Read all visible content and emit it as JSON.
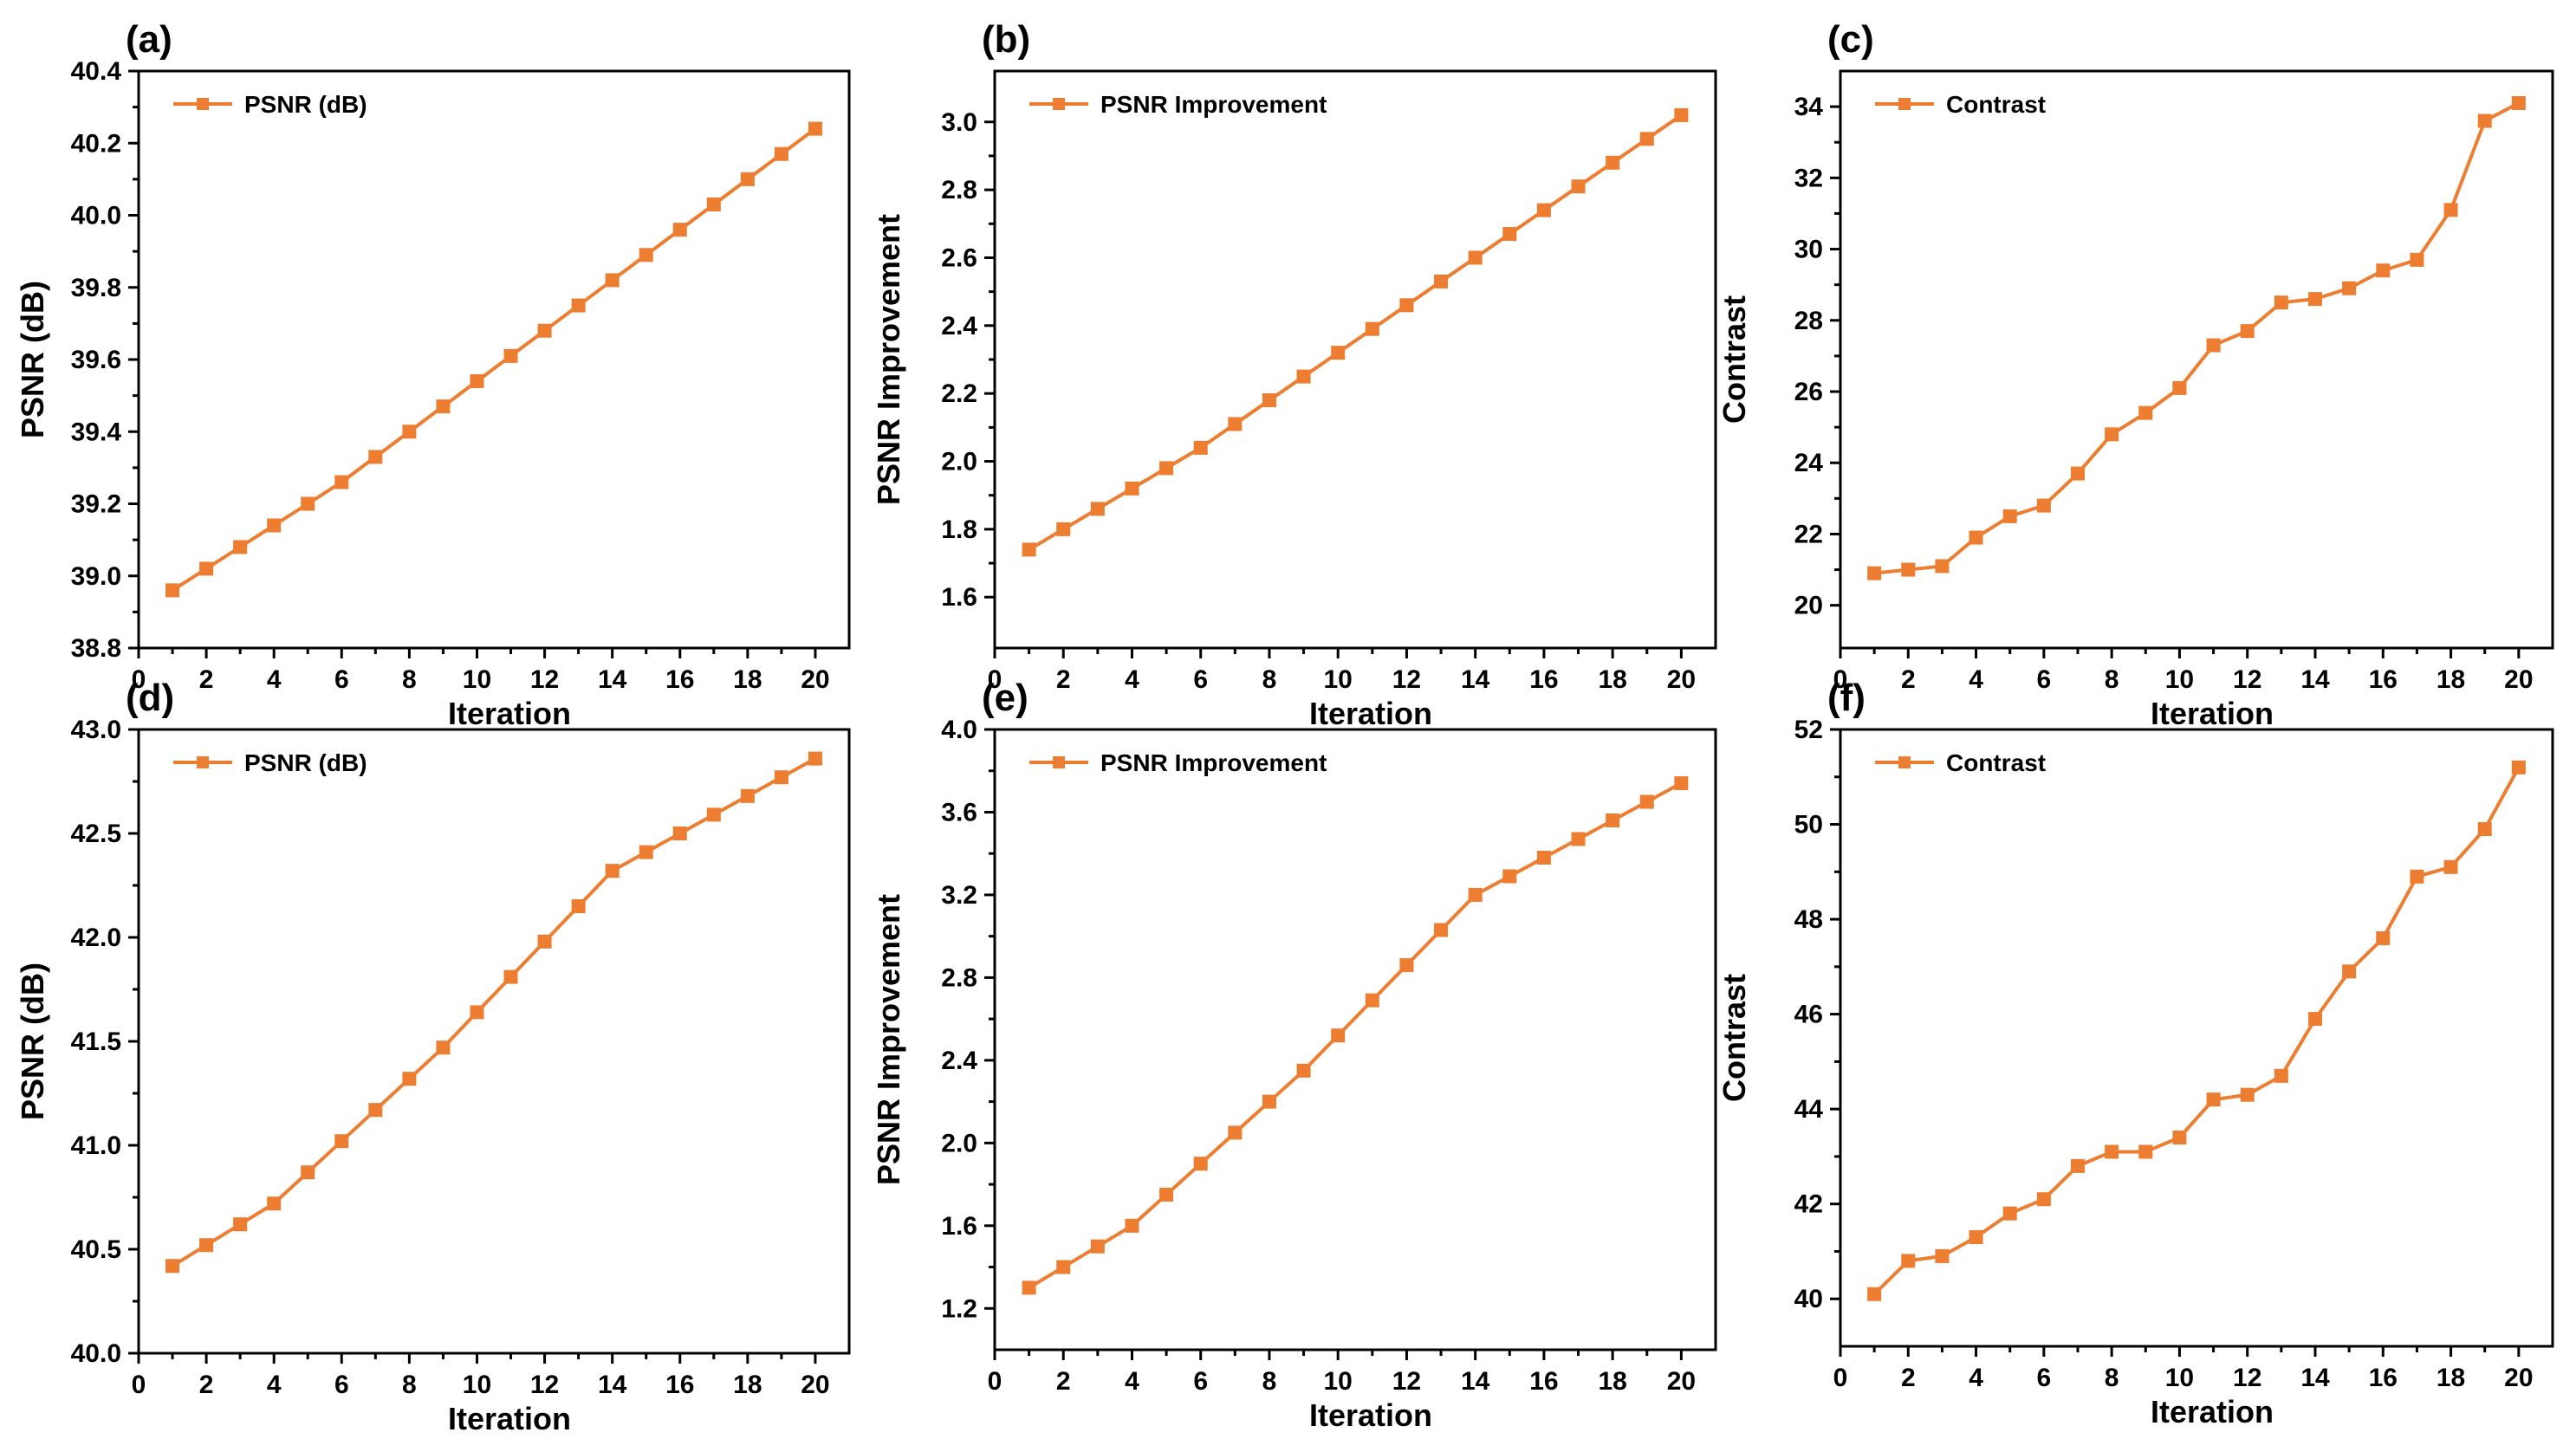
{
  "series_color": "#ED7D31",
  "chart_data": [
    {
      "type": "line",
      "panel": "(a)",
      "xlabel": "Iteration",
      "ylabel": "PSNR (dB)",
      "legend": "PSNR (dB)",
      "xlim": [
        0,
        21
      ],
      "ylim": [
        38.8,
        40.4
      ],
      "xticks": [
        0,
        2,
        4,
        6,
        8,
        10,
        12,
        14,
        16,
        18,
        20
      ],
      "yticks": [
        38.8,
        39.0,
        39.2,
        39.4,
        39.6,
        39.8,
        40.0,
        40.2,
        40.4
      ],
      "ytick_labels": [
        "38.8",
        "39.0",
        "39.2",
        "39.4",
        "39.6",
        "39.8",
        "40.0",
        "40.2",
        "40.4"
      ],
      "x": [
        1,
        2,
        3,
        4,
        5,
        6,
        7,
        8,
        9,
        10,
        11,
        12,
        13,
        14,
        15,
        16,
        17,
        18,
        19,
        20
      ],
      "values": [
        38.96,
        39.02,
        39.08,
        39.14,
        39.2,
        39.26,
        39.33,
        39.4,
        39.47,
        39.54,
        39.61,
        39.68,
        39.75,
        39.82,
        39.89,
        39.96,
        40.03,
        40.1,
        40.17,
        40.24
      ]
    },
    {
      "type": "line",
      "panel": "(b)",
      "xlabel": "Iteration",
      "ylabel": "PSNR Improvement",
      "legend": "PSNR Improvement",
      "xlim": [
        0,
        21
      ],
      "ylim": [
        1.45,
        3.15
      ],
      "xticks": [
        0,
        2,
        4,
        6,
        8,
        10,
        12,
        14,
        16,
        18,
        20
      ],
      "yticks": [
        1.6,
        1.8,
        2.0,
        2.2,
        2.4,
        2.6,
        2.8,
        3.0
      ],
      "ytick_labels": [
        "1.6",
        "1.8",
        "2.0",
        "2.2",
        "2.4",
        "2.6",
        "2.8",
        "3.0"
      ],
      "x": [
        1,
        2,
        3,
        4,
        5,
        6,
        7,
        8,
        9,
        10,
        11,
        12,
        13,
        14,
        15,
        16,
        17,
        18,
        19,
        20
      ],
      "values": [
        1.74,
        1.8,
        1.86,
        1.92,
        1.98,
        2.04,
        2.11,
        2.18,
        2.25,
        2.32,
        2.39,
        2.46,
        2.53,
        2.6,
        2.67,
        2.74,
        2.81,
        2.88,
        2.95,
        3.02
      ]
    },
    {
      "type": "line",
      "panel": "(c)",
      "xlabel": "Iteration",
      "ylabel": "Contrast",
      "legend": "Contrast",
      "xlim": [
        0,
        21
      ],
      "ylim": [
        18.8,
        35.0
      ],
      "xticks": [
        0,
        2,
        4,
        6,
        8,
        10,
        12,
        14,
        16,
        18,
        20
      ],
      "yticks": [
        20,
        22,
        24,
        26,
        28,
        30,
        32,
        34
      ],
      "ytick_labels": [
        "20",
        "22",
        "24",
        "26",
        "28",
        "30",
        "32",
        "34"
      ],
      "x": [
        1,
        2,
        3,
        4,
        5,
        6,
        7,
        8,
        9,
        10,
        11,
        12,
        13,
        14,
        15,
        16,
        17,
        18,
        19,
        20
      ],
      "values": [
        20.9,
        21.0,
        21.1,
        21.9,
        22.5,
        22.8,
        23.7,
        24.8,
        25.4,
        26.1,
        27.3,
        27.7,
        28.5,
        28.6,
        28.9,
        29.4,
        29.7,
        31.1,
        33.6,
        34.1
      ]
    },
    {
      "type": "line",
      "panel": "(d)",
      "xlabel": "Iteration",
      "ylabel": "PSNR (dB)",
      "legend": "PSNR (dB)",
      "xlim": [
        0,
        21
      ],
      "ylim": [
        40.0,
        43.0
      ],
      "xticks": [
        0,
        2,
        4,
        6,
        8,
        10,
        12,
        14,
        16,
        18,
        20
      ],
      "yticks": [
        40.0,
        40.5,
        41.0,
        41.5,
        42.0,
        42.5,
        43.0
      ],
      "ytick_labels": [
        "40.0",
        "40.5",
        "41.0",
        "41.5",
        "42.0",
        "42.5",
        "43.0"
      ],
      "x": [
        1,
        2,
        3,
        4,
        5,
        6,
        7,
        8,
        9,
        10,
        11,
        12,
        13,
        14,
        15,
        16,
        17,
        18,
        19,
        20
      ],
      "values": [
        40.42,
        40.52,
        40.62,
        40.72,
        40.87,
        41.02,
        41.17,
        41.32,
        41.47,
        41.64,
        41.81,
        41.98,
        42.15,
        42.32,
        42.41,
        42.5,
        42.59,
        42.68,
        42.77,
        42.86
      ]
    },
    {
      "type": "line",
      "panel": "(e)",
      "xlabel": "Iteration",
      "ylabel": "PSNR Improvement",
      "legend": "PSNR Improvement",
      "xlim": [
        0,
        21
      ],
      "ylim": [
        1.0,
        4.0
      ],
      "xticks": [
        0,
        2,
        4,
        6,
        8,
        10,
        12,
        14,
        16,
        18,
        20
      ],
      "yticks": [
        1.2,
        1.6,
        2.0,
        2.4,
        2.8,
        3.2,
        3.6,
        4.0
      ],
      "ytick_labels": [
        "1.2",
        "1.6",
        "2.0",
        "2.4",
        "2.8",
        "3.2",
        "3.6",
        "4.0"
      ],
      "x": [
        1,
        2,
        3,
        4,
        5,
        6,
        7,
        8,
        9,
        10,
        11,
        12,
        13,
        14,
        15,
        16,
        17,
        18,
        19,
        20
      ],
      "values": [
        1.3,
        1.4,
        1.5,
        1.6,
        1.75,
        1.9,
        2.05,
        2.2,
        2.35,
        2.52,
        2.69,
        2.86,
        3.03,
        3.2,
        3.29,
        3.38,
        3.47,
        3.56,
        3.65,
        3.74
      ]
    },
    {
      "type": "line",
      "panel": "(f)",
      "xlabel": "Iteration",
      "ylabel": "Contrast",
      "legend": "Contrast",
      "xlim": [
        0,
        21
      ],
      "ylim": [
        39.0,
        52.0
      ],
      "xticks": [
        0,
        2,
        4,
        6,
        8,
        10,
        12,
        14,
        16,
        18,
        20
      ],
      "yticks": [
        40,
        42,
        44,
        46,
        48,
        50,
        52
      ],
      "ytick_labels": [
        "40",
        "42",
        "44",
        "46",
        "48",
        "50",
        "52"
      ],
      "x": [
        1,
        2,
        3,
        4,
        5,
        6,
        7,
        8,
        9,
        10,
        11,
        12,
        13,
        14,
        15,
        16,
        17,
        18,
        19,
        20
      ],
      "values": [
        40.1,
        40.8,
        40.9,
        41.3,
        41.8,
        42.1,
        42.8,
        43.1,
        43.1,
        43.4,
        44.2,
        44.3,
        44.7,
        45.9,
        46.9,
        47.6,
        48.9,
        49.1,
        49.9,
        51.2
      ]
    }
  ]
}
